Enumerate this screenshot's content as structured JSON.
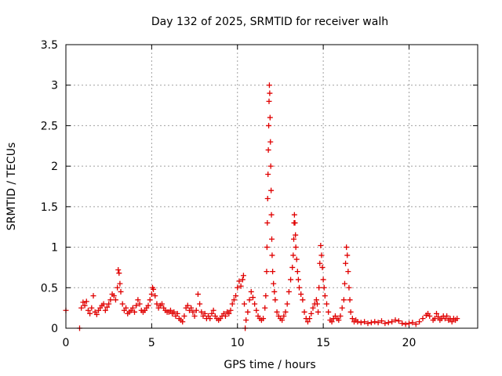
{
  "chart_data": {
    "type": "scatter",
    "title": "Day 132 of 2025, SRMTID for receiver walh",
    "xlabel": "GPS time / hours",
    "ylabel": "SRMTID / TECUs",
    "xlim": [
      0,
      24
    ],
    "ylim": [
      0,
      3.5
    ],
    "xticks": [
      0,
      5,
      10,
      15,
      20
    ],
    "xtick_labels": [
      "0",
      "5",
      "10",
      "15",
      "20"
    ],
    "yticks": [
      0,
      0.5,
      1,
      1.5,
      2,
      2.5,
      3,
      3.5
    ],
    "ytick_labels": [
      "0",
      "0.5",
      "1",
      "1.5",
      "2",
      "2.5",
      "3",
      "3.5"
    ],
    "grid": true,
    "marker": "plus",
    "series": [
      {
        "name": "walh",
        "color": "#e00000",
        "points": [
          [
            0.0,
            0.22
          ],
          [
            0.8,
            0.0
          ],
          [
            0.9,
            0.25
          ],
          [
            1.0,
            0.32
          ],
          [
            1.1,
            0.28
          ],
          [
            1.2,
            0.33
          ],
          [
            1.3,
            0.22
          ],
          [
            1.4,
            0.18
          ],
          [
            1.5,
            0.25
          ],
          [
            1.6,
            0.4
          ],
          [
            1.7,
            0.2
          ],
          [
            1.8,
            0.17
          ],
          [
            1.9,
            0.22
          ],
          [
            2.0,
            0.25
          ],
          [
            2.1,
            0.28
          ],
          [
            2.2,
            0.3
          ],
          [
            2.3,
            0.22
          ],
          [
            2.4,
            0.26
          ],
          [
            2.5,
            0.3
          ],
          [
            2.6,
            0.35
          ],
          [
            2.7,
            0.42
          ],
          [
            2.8,
            0.4
          ],
          [
            2.9,
            0.35
          ],
          [
            3.0,
            0.5
          ],
          [
            3.05,
            0.72
          ],
          [
            3.1,
            0.68
          ],
          [
            3.15,
            0.55
          ],
          [
            3.2,
            0.45
          ],
          [
            3.3,
            0.3
          ],
          [
            3.4,
            0.22
          ],
          [
            3.5,
            0.25
          ],
          [
            3.6,
            0.18
          ],
          [
            3.7,
            0.2
          ],
          [
            3.8,
            0.22
          ],
          [
            3.9,
            0.25
          ],
          [
            4.0,
            0.2
          ],
          [
            4.1,
            0.28
          ],
          [
            4.2,
            0.35
          ],
          [
            4.3,
            0.3
          ],
          [
            4.4,
            0.22
          ],
          [
            4.5,
            0.2
          ],
          [
            4.6,
            0.22
          ],
          [
            4.7,
            0.25
          ],
          [
            4.8,
            0.28
          ],
          [
            4.9,
            0.35
          ],
          [
            5.0,
            0.42
          ],
          [
            5.05,
            0.5
          ],
          [
            5.1,
            0.48
          ],
          [
            5.2,
            0.4
          ],
          [
            5.3,
            0.3
          ],
          [
            5.4,
            0.25
          ],
          [
            5.5,
            0.28
          ],
          [
            5.6,
            0.3
          ],
          [
            5.7,
            0.25
          ],
          [
            5.8,
            0.22
          ],
          [
            5.9,
            0.2
          ],
          [
            6.0,
            0.2
          ],
          [
            6.1,
            0.22
          ],
          [
            6.2,
            0.18
          ],
          [
            6.3,
            0.2
          ],
          [
            6.4,
            0.15
          ],
          [
            6.5,
            0.18
          ],
          [
            6.6,
            0.12
          ],
          [
            6.7,
            0.1
          ],
          [
            6.8,
            0.08
          ],
          [
            6.9,
            0.15
          ],
          [
            7.0,
            0.25
          ],
          [
            7.1,
            0.28
          ],
          [
            7.2,
            0.22
          ],
          [
            7.3,
            0.25
          ],
          [
            7.4,
            0.2
          ],
          [
            7.5,
            0.15
          ],
          [
            7.6,
            0.22
          ],
          [
            7.7,
            0.42
          ],
          [
            7.8,
            0.3
          ],
          [
            7.9,
            0.2
          ],
          [
            8.0,
            0.15
          ],
          [
            8.1,
            0.18
          ],
          [
            8.2,
            0.12
          ],
          [
            8.3,
            0.15
          ],
          [
            8.4,
            0.12
          ],
          [
            8.5,
            0.18
          ],
          [
            8.6,
            0.22
          ],
          [
            8.7,
            0.15
          ],
          [
            8.8,
            0.12
          ],
          [
            8.9,
            0.1
          ],
          [
            9.0,
            0.12
          ],
          [
            9.1,
            0.15
          ],
          [
            9.2,
            0.18
          ],
          [
            9.3,
            0.15
          ],
          [
            9.4,
            0.2
          ],
          [
            9.5,
            0.18
          ],
          [
            9.6,
            0.22
          ],
          [
            9.7,
            0.3
          ],
          [
            9.8,
            0.35
          ],
          [
            9.9,
            0.4
          ],
          [
            10.0,
            0.5
          ],
          [
            10.1,
            0.58
          ],
          [
            10.2,
            0.52
          ],
          [
            10.3,
            0.6
          ],
          [
            10.35,
            0.65
          ],
          [
            10.4,
            0.3
          ],
          [
            10.45,
            0.0
          ],
          [
            10.5,
            0.1
          ],
          [
            10.6,
            0.2
          ],
          [
            10.7,
            0.35
          ],
          [
            10.8,
            0.45
          ],
          [
            10.9,
            0.38
          ],
          [
            11.0,
            0.3
          ],
          [
            11.1,
            0.22
          ],
          [
            11.2,
            0.15
          ],
          [
            11.3,
            0.12
          ],
          [
            11.4,
            0.1
          ],
          [
            11.5,
            0.12
          ],
          [
            11.6,
            0.25
          ],
          [
            11.65,
            0.4
          ],
          [
            11.7,
            0.7
          ],
          [
            11.72,
            1.0
          ],
          [
            11.74,
            1.3
          ],
          [
            11.76,
            1.6
          ],
          [
            11.78,
            1.9
          ],
          [
            11.8,
            2.2
          ],
          [
            11.82,
            2.5
          ],
          [
            11.84,
            2.8
          ],
          [
            11.86,
            3.0
          ],
          [
            11.88,
            2.9
          ],
          [
            11.9,
            2.6
          ],
          [
            11.92,
            2.3
          ],
          [
            11.94,
            2.0
          ],
          [
            11.96,
            1.7
          ],
          [
            11.98,
            1.4
          ],
          [
            12.0,
            1.1
          ],
          [
            12.02,
            0.9
          ],
          [
            12.05,
            0.7
          ],
          [
            12.1,
            0.55
          ],
          [
            12.15,
            0.45
          ],
          [
            12.2,
            0.35
          ],
          [
            12.3,
            0.2
          ],
          [
            12.4,
            0.15
          ],
          [
            12.5,
            0.12
          ],
          [
            12.6,
            0.1
          ],
          [
            12.7,
            0.15
          ],
          [
            12.8,
            0.2
          ],
          [
            12.9,
            0.3
          ],
          [
            13.0,
            0.45
          ],
          [
            13.1,
            0.6
          ],
          [
            13.2,
            0.75
          ],
          [
            13.25,
            0.9
          ],
          [
            13.28,
            1.1
          ],
          [
            13.3,
            1.3
          ],
          [
            13.32,
            1.4
          ],
          [
            13.35,
            1.3
          ],
          [
            13.38,
            1.15
          ],
          [
            13.4,
            1.0
          ],
          [
            13.45,
            0.85
          ],
          [
            13.5,
            0.7
          ],
          [
            13.55,
            0.6
          ],
          [
            13.6,
            0.5
          ],
          [
            13.7,
            0.42
          ],
          [
            13.8,
            0.35
          ],
          [
            13.9,
            0.2
          ],
          [
            14.0,
            0.12
          ],
          [
            14.1,
            0.08
          ],
          [
            14.2,
            0.12
          ],
          [
            14.3,
            0.18
          ],
          [
            14.4,
            0.25
          ],
          [
            14.5,
            0.3
          ],
          [
            14.6,
            0.35
          ],
          [
            14.65,
            0.3
          ],
          [
            14.7,
            0.2
          ],
          [
            14.75,
            0.5
          ],
          [
            14.8,
            0.8
          ],
          [
            14.85,
            1.02
          ],
          [
            14.9,
            0.9
          ],
          [
            14.95,
            0.75
          ],
          [
            15.0,
            0.6
          ],
          [
            15.05,
            0.5
          ],
          [
            15.1,
            0.4
          ],
          [
            15.2,
            0.3
          ],
          [
            15.3,
            0.2
          ],
          [
            15.4,
            0.1
          ],
          [
            15.5,
            0.08
          ],
          [
            15.6,
            0.12
          ],
          [
            15.7,
            0.15
          ],
          [
            15.8,
            0.12
          ],
          [
            15.9,
            0.1
          ],
          [
            16.0,
            0.15
          ],
          [
            16.1,
            0.25
          ],
          [
            16.2,
            0.35
          ],
          [
            16.25,
            0.55
          ],
          [
            16.3,
            0.8
          ],
          [
            16.35,
            1.0
          ],
          [
            16.4,
            0.9
          ],
          [
            16.45,
            0.7
          ],
          [
            16.5,
            0.5
          ],
          [
            16.55,
            0.35
          ],
          [
            16.6,
            0.2
          ],
          [
            16.7,
            0.12
          ],
          [
            16.8,
            0.08
          ],
          [
            16.9,
            0.1
          ],
          [
            17.0,
            0.08
          ],
          [
            17.2,
            0.07
          ],
          [
            17.4,
            0.08
          ],
          [
            17.6,
            0.06
          ],
          [
            17.8,
            0.07
          ],
          [
            18.0,
            0.08
          ],
          [
            18.2,
            0.07
          ],
          [
            18.4,
            0.09
          ],
          [
            18.6,
            0.06
          ],
          [
            18.8,
            0.07
          ],
          [
            19.0,
            0.08
          ],
          [
            19.2,
            0.1
          ],
          [
            19.4,
            0.09
          ],
          [
            19.6,
            0.06
          ],
          [
            19.8,
            0.05
          ],
          [
            20.0,
            0.06
          ],
          [
            20.2,
            0.07
          ],
          [
            20.4,
            0.05
          ],
          [
            20.6,
            0.08
          ],
          [
            20.8,
            0.12
          ],
          [
            21.0,
            0.16
          ],
          [
            21.1,
            0.18
          ],
          [
            21.2,
            0.15
          ],
          [
            21.4,
            0.1
          ],
          [
            21.5,
            0.12
          ],
          [
            21.6,
            0.18
          ],
          [
            21.7,
            0.14
          ],
          [
            21.8,
            0.1
          ],
          [
            21.9,
            0.12
          ],
          [
            22.0,
            0.15
          ],
          [
            22.1,
            0.12
          ],
          [
            22.2,
            0.15
          ],
          [
            22.3,
            0.1
          ],
          [
            22.4,
            0.12
          ],
          [
            22.5,
            0.08
          ],
          [
            22.6,
            0.12
          ],
          [
            22.7,
            0.1
          ],
          [
            22.8,
            0.12
          ]
        ]
      }
    ]
  }
}
